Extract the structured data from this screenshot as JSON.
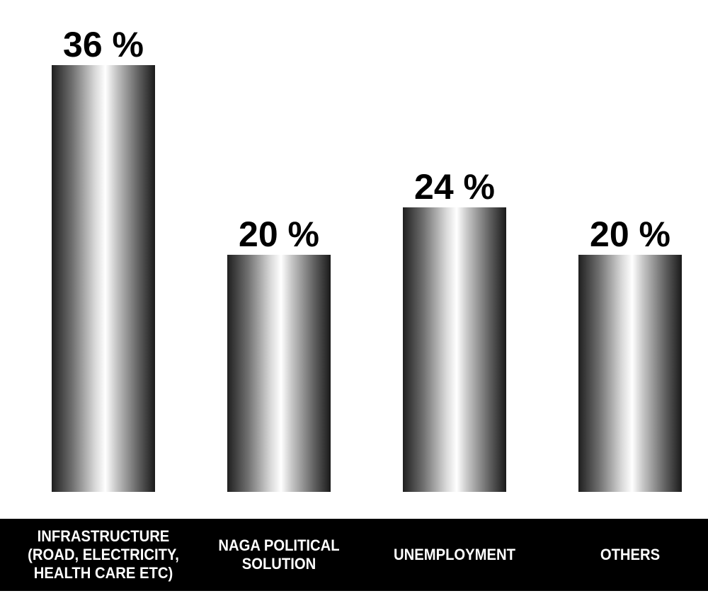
{
  "chart_data": {
    "type": "bar",
    "title": "",
    "xlabel": "",
    "ylabel": "",
    "ylim": [
      0,
      36
    ],
    "categories": [
      "INFRASTRUCTURE\n(ROAD, ELECTRICITY,\nHEALTH CARE ETC)",
      "NAGA POLITICAL\nSOLUTION",
      "UNEMPLOYMENT",
      "OTHERS"
    ],
    "values": [
      36,
      20,
      24,
      20
    ],
    "data_labels": [
      "36 %",
      "20 %",
      "24 %",
      "20 %"
    ],
    "grid": false,
    "legend": "none"
  },
  "colors": {
    "bar_edge": "#1a1a1a",
    "bar_mid": "#8a8a8a",
    "bar_highlight": "#ffffff",
    "label_band": "#000000",
    "label_text": "#ffffff",
    "value_text": "#000000"
  }
}
